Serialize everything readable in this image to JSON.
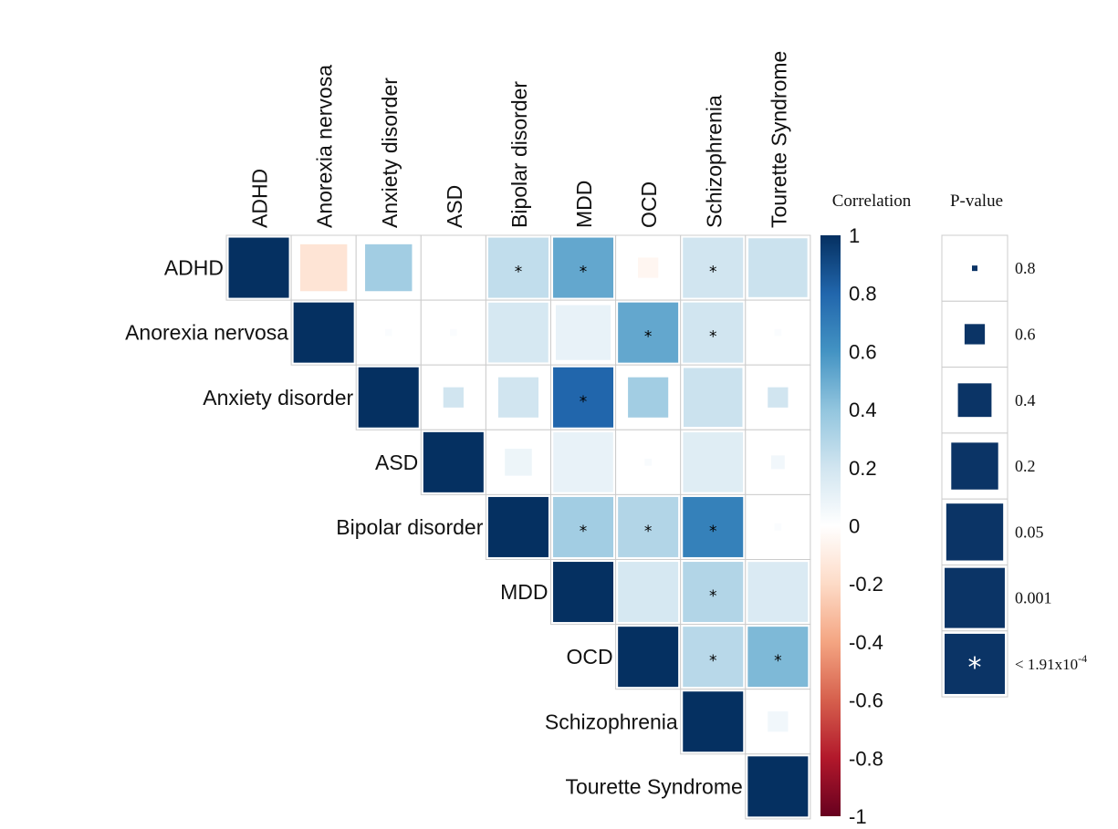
{
  "chart_data": {
    "type": "heatmap",
    "subtype": "upper-triangular correlation matrix (square size encodes P-value)",
    "labels": [
      "ADHD",
      "Anorexia nervosa",
      "Anxiety disorder",
      "ASD",
      "Bipolar disorder",
      "MDD",
      "OCD",
      "Schizophrenia",
      "Tourette Syndrome"
    ],
    "cells": [
      {
        "row": "ADHD",
        "col": "ADHD",
        "r": 1.0,
        "p": 0,
        "sig": false
      },
      {
        "row": "ADHD",
        "col": "Anorexia nervosa",
        "r": -0.15,
        "p": 0.2,
        "sig": false
      },
      {
        "row": "ADHD",
        "col": "Anxiety disorder",
        "r": 0.35,
        "p": 0.2,
        "sig": false
      },
      {
        "row": "ADHD",
        "col": "Bipolar disorder",
        "r": 0.25,
        "p": 1e-05,
        "sig": true
      },
      {
        "row": "ADHD",
        "col": "MDD",
        "r": 0.52,
        "p": 1e-05,
        "sig": true
      },
      {
        "row": "ADHD",
        "col": "OCD",
        "r": -0.05,
        "p": 0.6,
        "sig": false
      },
      {
        "row": "ADHD",
        "col": "Schizophrenia",
        "r": 0.2,
        "p": 1e-05,
        "sig": true
      },
      {
        "row": "ADHD",
        "col": "Tourette Syndrome",
        "r": 0.22,
        "p": 0.02,
        "sig": false
      },
      {
        "row": "Anorexia nervosa",
        "col": "Anorexia nervosa",
        "r": 1.0,
        "p": 0,
        "sig": false
      },
      {
        "row": "Anorexia nervosa",
        "col": "Anxiety disorder",
        "r": 0.02,
        "p": 0.8,
        "sig": false
      },
      {
        "row": "Anorexia nervosa",
        "col": "ASD",
        "r": 0.02,
        "p": 0.8,
        "sig": false
      },
      {
        "row": "Anorexia nervosa",
        "col": "Bipolar disorder",
        "r": 0.18,
        "p": 0.005,
        "sig": false
      },
      {
        "row": "Anorexia nervosa",
        "col": "MDD",
        "r": 0.1,
        "p": 0.08,
        "sig": false
      },
      {
        "row": "Anorexia nervosa",
        "col": "OCD",
        "r": 0.52,
        "p": 1e-05,
        "sig": true
      },
      {
        "row": "Anorexia nervosa",
        "col": "Schizophrenia",
        "r": 0.2,
        "p": 1e-05,
        "sig": true
      },
      {
        "row": "Anorexia nervosa",
        "col": "Tourette Syndrome",
        "r": 0.02,
        "p": 0.8,
        "sig": false
      },
      {
        "row": "Anxiety disorder",
        "col": "Anxiety disorder",
        "r": 1.0,
        "p": 0,
        "sig": false
      },
      {
        "row": "Anxiety disorder",
        "col": "ASD",
        "r": 0.2,
        "p": 0.6,
        "sig": false
      },
      {
        "row": "Anxiety disorder",
        "col": "Bipolar disorder",
        "r": 0.2,
        "p": 0.3,
        "sig": false
      },
      {
        "row": "Anxiety disorder",
        "col": "MDD",
        "r": 0.8,
        "p": 1e-05,
        "sig": true
      },
      {
        "row": "Anxiety disorder",
        "col": "OCD",
        "r": 0.35,
        "p": 0.3,
        "sig": false
      },
      {
        "row": "Anxiety disorder",
        "col": "Schizophrenia",
        "r": 0.22,
        "p": 0.02,
        "sig": false
      },
      {
        "row": "Anxiety disorder",
        "col": "Tourette Syndrome",
        "r": 0.2,
        "p": 0.6,
        "sig": false
      },
      {
        "row": "ASD",
        "col": "ASD",
        "r": 1.0,
        "p": 0,
        "sig": false
      },
      {
        "row": "ASD",
        "col": "Bipolar disorder",
        "r": 0.08,
        "p": 0.5,
        "sig": false
      },
      {
        "row": "ASD",
        "col": "MDD",
        "r": 0.1,
        "p": 0.005,
        "sig": false
      },
      {
        "row": "ASD",
        "col": "OCD",
        "r": 0.03,
        "p": 0.8,
        "sig": false
      },
      {
        "row": "ASD",
        "col": "Schizophrenia",
        "r": 0.14,
        "p": 0.005,
        "sig": false
      },
      {
        "row": "ASD",
        "col": "Tourette Syndrome",
        "r": 0.06,
        "p": 0.7,
        "sig": false
      },
      {
        "row": "Bipolar disorder",
        "col": "Bipolar disorder",
        "r": 1.0,
        "p": 0,
        "sig": false
      },
      {
        "row": "Bipolar disorder",
        "col": "MDD",
        "r": 0.35,
        "p": 1e-05,
        "sig": true
      },
      {
        "row": "Bipolar disorder",
        "col": "OCD",
        "r": 0.3,
        "p": 1e-05,
        "sig": true
      },
      {
        "row": "Bipolar disorder",
        "col": "Schizophrenia",
        "r": 0.68,
        "p": 1e-05,
        "sig": true
      },
      {
        "row": "Bipolar disorder",
        "col": "Tourette Syndrome",
        "r": 0.02,
        "p": 0.8,
        "sig": false
      },
      {
        "row": "MDD",
        "col": "MDD",
        "r": 1.0,
        "p": 0,
        "sig": false
      },
      {
        "row": "MDD",
        "col": "OCD",
        "r": 0.18,
        "p": 0.0005,
        "sig": false
      },
      {
        "row": "MDD",
        "col": "Schizophrenia",
        "r": 0.3,
        "p": 1e-05,
        "sig": true
      },
      {
        "row": "MDD",
        "col": "Tourette Syndrome",
        "r": 0.16,
        "p": 0.003,
        "sig": false
      },
      {
        "row": "OCD",
        "col": "OCD",
        "r": 1.0,
        "p": 0,
        "sig": false
      },
      {
        "row": "OCD",
        "col": "Schizophrenia",
        "r": 0.28,
        "p": 1e-05,
        "sig": true
      },
      {
        "row": "OCD",
        "col": "Tourette Syndrome",
        "r": 0.45,
        "p": 1e-05,
        "sig": true
      },
      {
        "row": "Schizophrenia",
        "col": "Schizophrenia",
        "r": 1.0,
        "p": 0,
        "sig": false
      },
      {
        "row": "Schizophrenia",
        "col": "Tourette Syndrome",
        "r": 0.06,
        "p": 0.6,
        "sig": false
      },
      {
        "row": "Tourette Syndrome",
        "col": "Tourette Syndrome",
        "r": 1.0,
        "p": 0,
        "sig": false
      }
    ],
    "color_scale": {
      "title": "Correlation",
      "range": [
        -1,
        1
      ],
      "ticks": [
        "1",
        "0.8",
        "0.6",
        "0.4",
        "0.2",
        "0",
        "-0.2",
        "-0.4",
        "-0.6",
        "-0.8",
        "-1"
      ],
      "colors": [
        "#67001F",
        "#B2182B",
        "#D6604D",
        "#F4A582",
        "#FDDBC7",
        "#FFFFFF",
        "#D1E5F0",
        "#92C5DE",
        "#4393C3",
        "#2166AC",
        "#053061"
      ]
    },
    "pvalue_legend": {
      "title": "P-value",
      "items": [
        {
          "p": 0.8,
          "label": "0.8"
        },
        {
          "p": 0.6,
          "label": "0.6"
        },
        {
          "p": 0.4,
          "label": "0.4"
        },
        {
          "p": 0.2,
          "label": "0.2"
        },
        {
          "p": 0.05,
          "label": "0.05"
        },
        {
          "p": 0.001,
          "label": "0.001"
        }
      ],
      "star_label_base": "< 1.91x10",
      "star_label_exp": "-4"
    },
    "marker_color": "#0B3466",
    "grid_color": "#CCCCCC"
  }
}
